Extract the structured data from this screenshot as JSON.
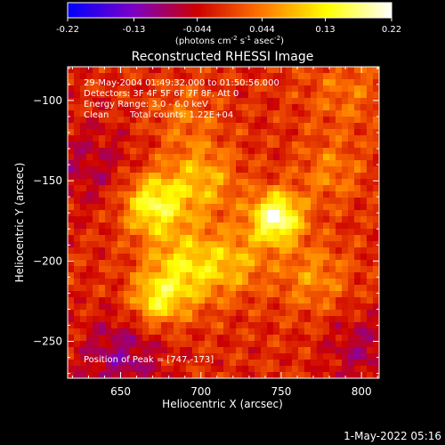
{
  "chart_data": {
    "type": "heatmap",
    "title": "Reconstructed RHESSI Image",
    "xlabel": "Heliocentric X (arcsec)",
    "ylabel": "Heliocentric Y (arcsec)",
    "xlim": [
      617,
      811
    ],
    "ylim": [
      -273,
      -79
    ],
    "x_ticks": [
      650,
      700,
      750,
      800
    ],
    "y_ticks": [
      -100,
      -150,
      -200,
      -250
    ],
    "colorbar": {
      "ticks": [
        -0.22,
        -0.13,
        -0.044,
        0.044,
        0.13,
        0.22
      ],
      "tick_labels": [
        "-0.22",
        "-0.13",
        "-0.044",
        "0.044",
        "0.13",
        "0.22"
      ],
      "units_parts": [
        "(photons cm",
        "-2",
        " s",
        "-1",
        " asec",
        "-2",
        ")"
      ],
      "range": [
        -0.22,
        0.22
      ],
      "colormap": [
        "#0000ff",
        "#7a00c8",
        "#cc0000",
        "#ff7700",
        "#ffff00",
        "#ffffff"
      ]
    },
    "annotations": {
      "line1": "29-May-2004 01:49:32.000 to 01:50:56.000",
      "line2": "Detectors: 3F 4F 5F 6F 7F 8F, Att 0",
      "line3": "Energy Range: 3.0 - 6.0 keV",
      "line4_a": "Clean",
      "line4_b": "Total counts: 1.22E+04",
      "peak": "Position of Peak = [747,-173]"
    },
    "peak": {
      "x": 747,
      "y": -173
    },
    "sources": [
      {
        "x": 747,
        "y": -173,
        "amp": 0.22,
        "sigma": 11
      },
      {
        "x": 670,
        "y": -165,
        "amp": 0.16,
        "sigma": 13
      },
      {
        "x": 700,
        "y": -150,
        "amp": 0.1,
        "sigma": 16
      },
      {
        "x": 690,
        "y": -205,
        "amp": 0.13,
        "sigma": 17
      },
      {
        "x": 672,
        "y": -225,
        "amp": 0.12,
        "sigma": 11
      },
      {
        "x": 722,
        "y": -200,
        "amp": 0.08,
        "sigma": 14
      },
      {
        "x": 770,
        "y": -210,
        "amp": 0.07,
        "sigma": 16
      },
      {
        "x": 780,
        "y": -145,
        "amp": 0.06,
        "sigma": 14
      },
      {
        "x": 790,
        "y": -95,
        "amp": 0.05,
        "sigma": 18
      },
      {
        "x": 690,
        "y": -110,
        "amp": 0.05,
        "sigma": 14
      },
      {
        "x": 650,
        "y": -260,
        "amp": -0.08,
        "sigma": 18
      },
      {
        "x": 630,
        "y": -140,
        "amp": -0.05,
        "sigma": 20
      },
      {
        "x": 800,
        "y": -255,
        "amp": -0.06,
        "sigma": 16
      }
    ]
  },
  "footer": {
    "timestamp": "1-May-2022 05:16"
  }
}
